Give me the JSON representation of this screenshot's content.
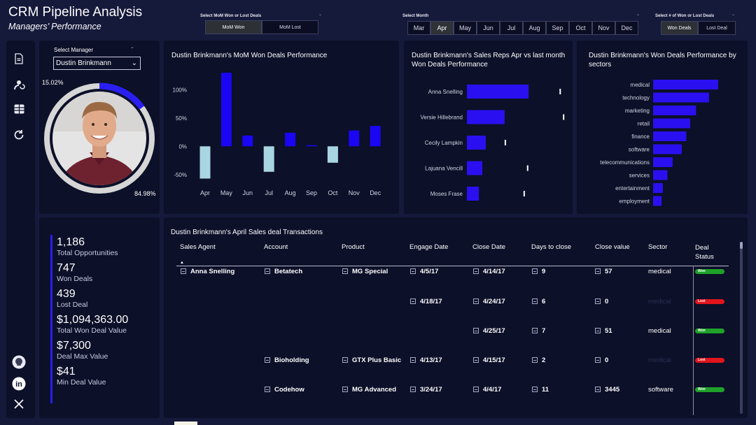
{
  "header": {
    "title": "CRM Pipeline Analysis",
    "subtitle": "Managers’ Performance"
  },
  "slicers": {
    "mom": {
      "label": "Select MoM Won or Lost Deals",
      "options": [
        "MoM Won",
        "MoM Lost"
      ],
      "selected": "MoM Won"
    },
    "month": {
      "label": "Select Month",
      "options": [
        "Mar",
        "Apr",
        "May",
        "Jun",
        "Jul",
        "Aug",
        "Sep",
        "Oct",
        "Nov",
        "Dec"
      ],
      "selected": "Apr"
    },
    "deals": {
      "label": "Select # of Won or Lost Deals",
      "options": [
        "Won Deals",
        "Lost Deal"
      ],
      "selected": "Won Deals"
    }
  },
  "sidebar": {
    "icons": [
      "document-icon",
      "person-refresh-icon",
      "table-icon",
      "refresh-icon",
      "github-icon",
      "linkedin-icon",
      "x-icon"
    ]
  },
  "manager": {
    "label": "Select Manager",
    "value": "Dustin Brinkmann",
    "won_pct_label": "15.02%",
    "lost_pct_label": "84.98%",
    "won_fraction": 0.1502,
    "accent": "#2a1ff0",
    "ring": "#d6d6d6"
  },
  "kpis": [
    {
      "value": "1,186",
      "label": "Total Opportunities"
    },
    {
      "value": "747",
      "label": "Won Deals"
    },
    {
      "value": "439",
      "label": "Lost Deal"
    },
    {
      "value": "$1,094,363.00",
      "label": "Total Won Deal Value"
    },
    {
      "value": "$7,300",
      "label": "Deal Max Value"
    },
    {
      "value": "$41",
      "label": "Min Deal Value"
    }
  ],
  "chart_data": [
    {
      "type": "bar",
      "title": "Dustin Brinkmann's MoM Won Deals Performance",
      "categories": [
        "Apr",
        "May",
        "Jun",
        "Jul",
        "Aug",
        "Sep",
        "Oct",
        "Nov",
        "Dec"
      ],
      "values": [
        -57,
        130,
        19,
        -45,
        24,
        2,
        -29,
        28,
        36
      ],
      "ytick_labels": [
        "100%",
        "50%",
        "0%",
        "-50%"
      ],
      "yticks": [
        100,
        50,
        0,
        -50
      ],
      "ylim": [
        -70,
        135
      ],
      "colors": {
        "positive": "#1a06f2",
        "negative": "#a9d5e2"
      }
    },
    {
      "type": "bar",
      "orientation": "horizontal",
      "title": "Dustin Brinkmann's Sales Reps Apr vs last month Won Deals Performance",
      "categories": [
        "Anna Snelling",
        "Versie Hillebrand",
        "Cecily Lampkin",
        "Lajuana Vencill",
        "Moses Frase"
      ],
      "values": [
        18,
        11,
        5.5,
        4.5,
        3.5
      ],
      "last_month": [
        27,
        28,
        11,
        17.5,
        16.5
      ],
      "xlim": [
        0,
        40
      ],
      "colors": {
        "bar": "#2a10f0",
        "marker": "#ffffff"
      }
    },
    {
      "type": "bar",
      "orientation": "horizontal",
      "title": "Dustin Brinkmann's Won Deals Performance by sectors",
      "categories": [
        "medical",
        "technology",
        "marketing",
        "retail",
        "finance",
        "software",
        "telecommunications",
        "services",
        "entertainment",
        "employment"
      ],
      "values": [
        100,
        86,
        66,
        57,
        51,
        44,
        30,
        22,
        15,
        13
      ],
      "xlim": [
        0,
        100
      ],
      "colors": {
        "bar": "#2a10f0"
      }
    }
  ],
  "table": {
    "title": "Dustin Brinkmann's April  Sales deal Transactions",
    "headers": [
      "Sales Agent",
      "Account",
      "Product",
      "Engage Date",
      "Close Date",
      "Days to close",
      "Close value",
      "Sector",
      "Deal Status"
    ],
    "rows": [
      {
        "agent": "Anna Snelling",
        "account": "Betatech",
        "product": "MG Special",
        "engage": "4/5/17",
        "close": "4/14/17",
        "days": "9",
        "value": "57",
        "sector": "medical",
        "status": "Won"
      },
      {
        "agent": "",
        "account": "",
        "product": "",
        "engage": "4/18/17",
        "close": "4/24/17",
        "days": "6",
        "value": "0",
        "sector": "medical",
        "status": "Lost"
      },
      {
        "agent": "",
        "account": "",
        "product": "",
        "engage": "",
        "close": "4/25/17",
        "days": "7",
        "value": "51",
        "sector": "medical",
        "status": "Won"
      },
      {
        "agent": "",
        "account": "Bioholding",
        "product": "GTX Plus Basic",
        "engage": "4/13/17",
        "close": "4/15/17",
        "days": "2",
        "value": "0",
        "sector": "medical",
        "status": "Lost"
      },
      {
        "agent": "",
        "account": "Codehow",
        "product": "MG Advanced",
        "engage": "3/24/17",
        "close": "4/4/17",
        "days": "11",
        "value": "3445",
        "sector": "software",
        "status": "Won"
      }
    ]
  }
}
